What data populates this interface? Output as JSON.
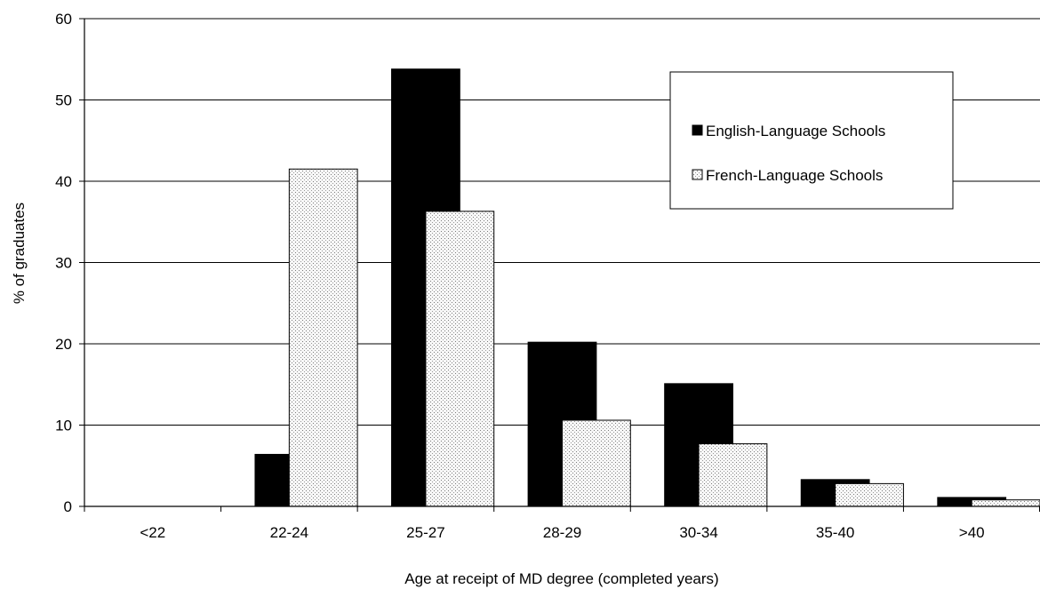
{
  "chart_data": {
    "type": "bar",
    "title": "",
    "xlabel": "Age at receipt of MD degree (completed years)",
    "ylabel": "% of graduates",
    "ylim": [
      0,
      60
    ],
    "yticks": [
      0,
      10,
      20,
      30,
      40,
      50,
      60
    ],
    "grid": true,
    "legend_position": "top-right",
    "categories": [
      "<22",
      "22-24",
      "25-27",
      "28-29",
      "30-34",
      "35-40",
      ">40"
    ],
    "series": [
      {
        "name": "English-Language Schools",
        "color": "#000000",
        "pattern": "solid",
        "values": [
          0,
          6.4,
          53.8,
          20.2,
          15.1,
          3.3,
          1.1
        ]
      },
      {
        "name": "French-Language Schools",
        "color": "#f2f2f2",
        "pattern": "dotted",
        "values": [
          0,
          41.5,
          36.3,
          10.6,
          7.7,
          2.8,
          0.8
        ]
      }
    ]
  }
}
